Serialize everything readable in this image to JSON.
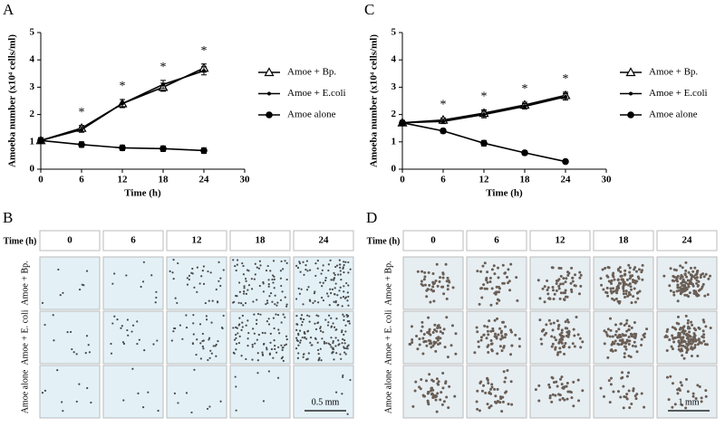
{
  "chart_data": [
    {
      "type": "line",
      "panel_label": "A",
      "x_label": "Time (h)",
      "y_label": "Amoeba number (x10⁴ cells/ml)",
      "x": [
        0,
        6,
        12,
        18,
        24
      ],
      "xlim": [
        0,
        30
      ],
      "xticks": [
        0,
        6,
        12,
        18,
        24,
        30
      ],
      "ylim": [
        0,
        5
      ],
      "yticks": [
        0,
        1,
        2,
        3,
        4,
        5
      ],
      "series": [
        {
          "name": "Amoe + Bp.",
          "color": "#000000",
          "marker": "triangle-open",
          "values": [
            1.05,
            1.5,
            2.4,
            3.0,
            3.7
          ],
          "errors": [
            0.1,
            0.1,
            0.15,
            0.15,
            0.15
          ]
        },
        {
          "name": "Amoe + E.coli",
          "color": "#000000",
          "marker": "dot",
          "values": [
            1.05,
            1.45,
            2.4,
            3.1,
            3.6
          ],
          "errors": [
            0.1,
            0.1,
            0.15,
            0.15,
            0.15
          ]
        },
        {
          "name": "Amoe alone",
          "color": "#000000",
          "marker": "circle",
          "values": [
            1.05,
            0.9,
            0.78,
            0.75,
            0.68
          ],
          "errors": [
            0.1,
            0.1,
            0.1,
            0.1,
            0.1
          ]
        }
      ],
      "annotations": [
        {
          "text": "*",
          "x": 6
        },
        {
          "text": "*",
          "x": 12
        },
        {
          "text": "*",
          "x": 18
        },
        {
          "text": "*",
          "x": 24
        }
      ]
    },
    {
      "type": "line",
      "panel_label": "C",
      "x_label": "Time (h)",
      "y_label": "Amoeba number (x10⁴ cells/ml)",
      "x": [
        0,
        6,
        12,
        18,
        24
      ],
      "xlim": [
        0,
        30
      ],
      "xticks": [
        0,
        6,
        12,
        18,
        24,
        30
      ],
      "ylim": [
        0,
        5
      ],
      "yticks": [
        0,
        1,
        2,
        3,
        4,
        5
      ],
      "series": [
        {
          "name": "Amoe + Bp.",
          "color": "#000000",
          "marker": "triangle-open",
          "values": [
            1.7,
            1.8,
            2.05,
            2.35,
            2.7
          ],
          "errors": [
            0.08,
            0.08,
            0.12,
            0.1,
            0.12
          ]
        },
        {
          "name": "Amoe + E.coli",
          "color": "#000000",
          "marker": "dot",
          "values": [
            1.7,
            1.75,
            2.0,
            2.3,
            2.65
          ],
          "errors": [
            0.08,
            0.08,
            0.12,
            0.1,
            0.12
          ]
        },
        {
          "name": "Amoe alone",
          "color": "#000000",
          "marker": "circle",
          "values": [
            1.7,
            1.4,
            0.95,
            0.6,
            0.28
          ],
          "errors": [
            0.08,
            0.08,
            0.1,
            0.07,
            0.04
          ]
        }
      ],
      "annotations": [
        {
          "text": "*",
          "x": 6
        },
        {
          "text": "*",
          "x": 12
        },
        {
          "text": "*",
          "x": 18
        },
        {
          "text": "*",
          "x": 24
        }
      ]
    }
  ],
  "image_panels": [
    {
      "panel_label": "B",
      "row_header": "Time (h)",
      "columns": [
        "0",
        "6",
        "12",
        "18",
        "24"
      ],
      "rows": [
        "Amoe + Bp.",
        "Amoe + E. coli",
        "Amoe alone"
      ],
      "scale_bar": "0.5 mm"
    },
    {
      "panel_label": "D",
      "row_header": "Time (h)",
      "columns": [
        "0",
        "6",
        "12",
        "18",
        "24"
      ],
      "rows": [
        "Amoe + Bp.",
        "Amoe + E. coli",
        "Amoe alone"
      ],
      "scale_bar": "1 mm"
    }
  ]
}
